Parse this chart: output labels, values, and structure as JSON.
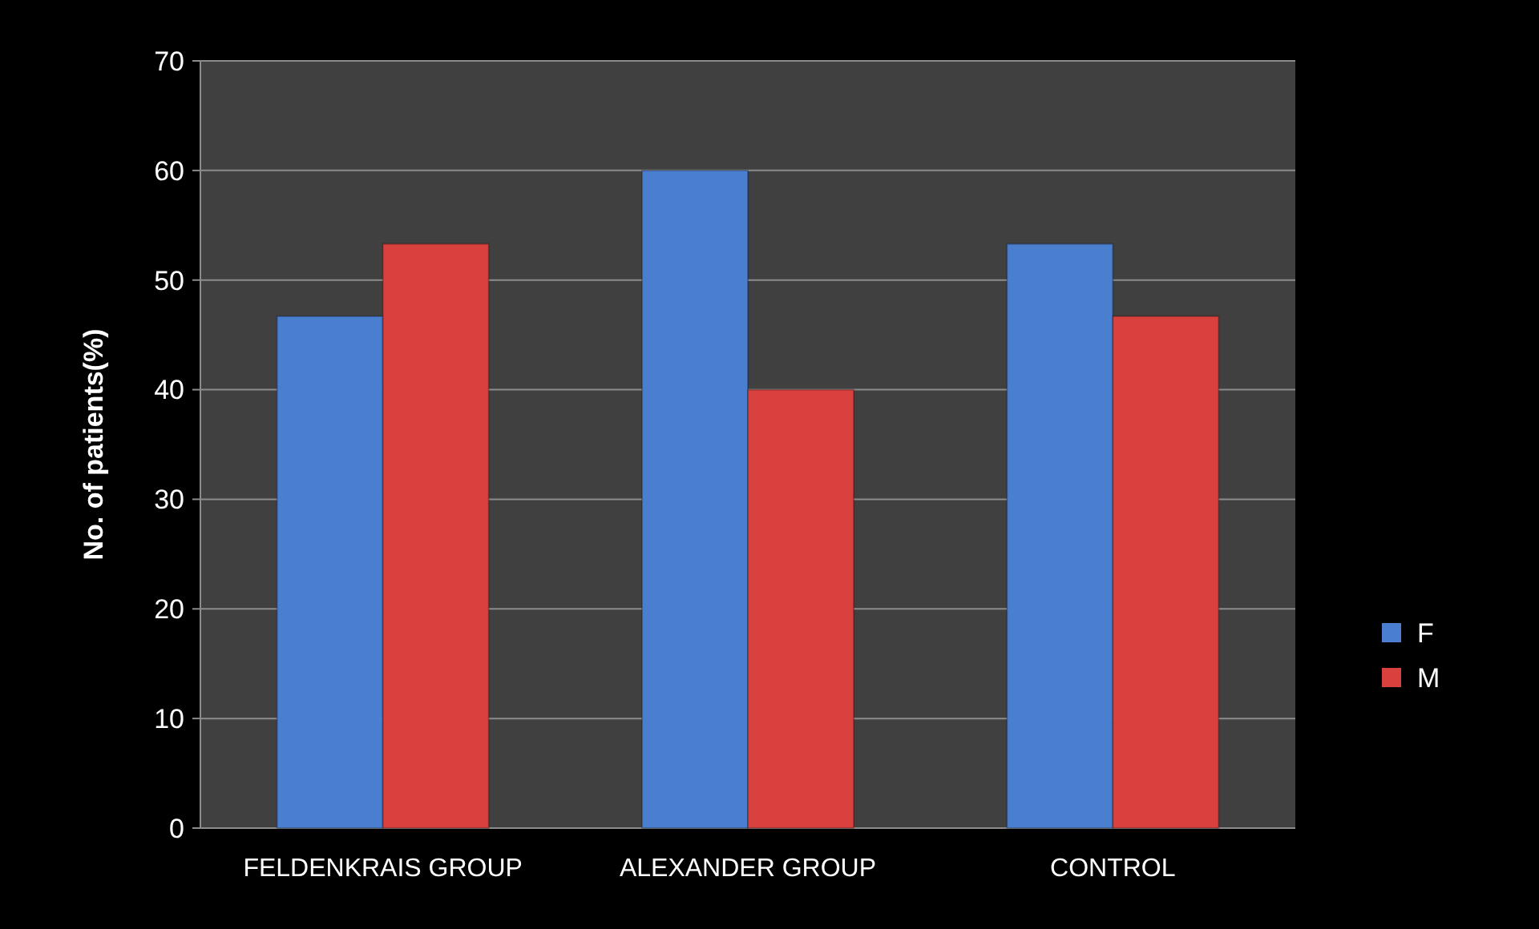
{
  "chart_data": {
    "type": "bar",
    "ylabel": "No. of patients(%)",
    "categories": [
      "FELDENKRAIS GROUP",
      "ALEXANDER GROUP",
      "CONTROL"
    ],
    "series": [
      {
        "name": "F",
        "color": "#4a7fd0",
        "values": [
          46.7,
          60,
          53.3
        ]
      },
      {
        "name": "M",
        "color": "#d9413e",
        "values": [
          53.3,
          40,
          46.7
        ]
      }
    ],
    "ylim": [
      0,
      70
    ],
    "yticks": [
      0,
      10,
      20,
      30,
      40,
      50,
      60,
      70
    ],
    "grid": "y",
    "legend": "right"
  }
}
